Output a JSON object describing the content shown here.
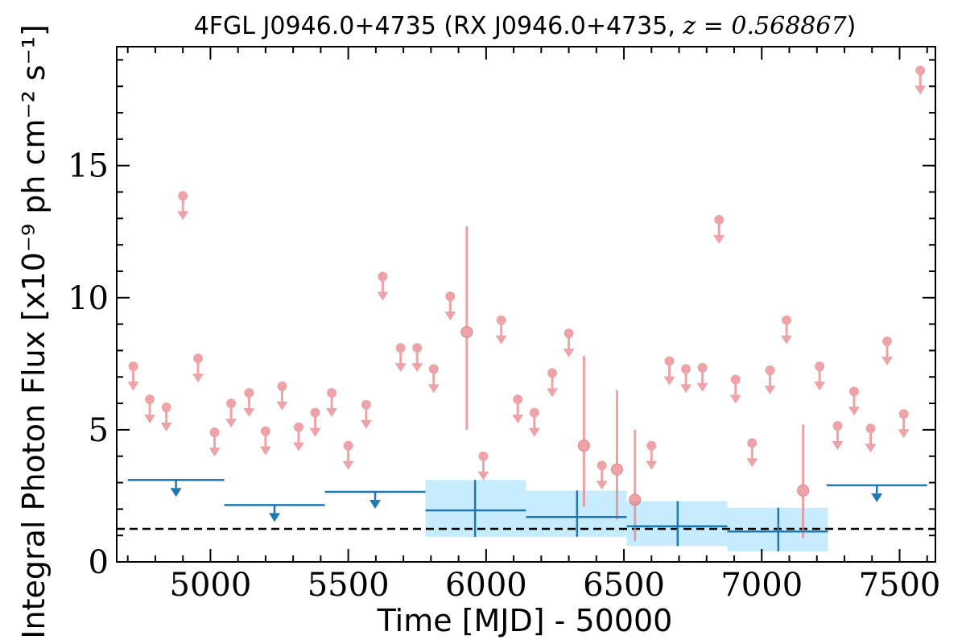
{
  "chart_data": {
    "type": "scatter",
    "title_parts": {
      "main": "4FGL J0946.0+4735 (RX J0946.0+4735, ",
      "math": "z = 0.568867",
      "end": ")"
    },
    "xlabel": "Time [MJD] - 50000",
    "ylabel": "Integral Photon Flux [x10⁻⁹ ph cm⁻² s⁻¹]",
    "xlim": [
      4660,
      7630
    ],
    "ylim": [
      0,
      19.5
    ],
    "x_ticks": [
      5000,
      5500,
      6000,
      6500,
      7000,
      7500
    ],
    "y_ticks": [
      0,
      5,
      10,
      15
    ],
    "x_tick_labels": [
      "5000",
      "5500",
      "6000",
      "6500",
      "7000",
      "7500"
    ],
    "y_tick_labels": [
      "0",
      "5",
      "10",
      "15"
    ],
    "colors": {
      "short_bins": "#e8858a",
      "long_bins": "#1f77b4",
      "band": "#c6ecfd",
      "reference_line": "#000000"
    },
    "reference_line": {
      "style": "dashed",
      "y": 1.25
    },
    "short_bins_upper_limits": [
      {
        "x": 4720,
        "y": 7.4
      },
      {
        "x": 4780,
        "y": 6.15
      },
      {
        "x": 4840,
        "y": 5.85
      },
      {
        "x": 4900,
        "y": 13.85
      },
      {
        "x": 4955,
        "y": 7.7
      },
      {
        "x": 5015,
        "y": 4.9
      },
      {
        "x": 5075,
        "y": 6.0
      },
      {
        "x": 5140,
        "y": 6.4
      },
      {
        "x": 5200,
        "y": 4.95
      },
      {
        "x": 5260,
        "y": 6.65
      },
      {
        "x": 5320,
        "y": 5.1
      },
      {
        "x": 5380,
        "y": 5.65
      },
      {
        "x": 5440,
        "y": 6.4
      },
      {
        "x": 5500,
        "y": 4.4
      },
      {
        "x": 5565,
        "y": 5.95
      },
      {
        "x": 5625,
        "y": 10.8
      },
      {
        "x": 5690,
        "y": 8.1
      },
      {
        "x": 5750,
        "y": 8.1
      },
      {
        "x": 5810,
        "y": 7.3
      },
      {
        "x": 5870,
        "y": 10.05
      },
      {
        "x": 5990,
        "y": 4.0
      },
      {
        "x": 6055,
        "y": 9.15
      },
      {
        "x": 6115,
        "y": 6.15
      },
      {
        "x": 6175,
        "y": 5.65
      },
      {
        "x": 6240,
        "y": 7.15
      },
      {
        "x": 6300,
        "y": 8.65
      },
      {
        "x": 6420,
        "y": 3.65
      },
      {
        "x": 6600,
        "y": 4.4
      },
      {
        "x": 6665,
        "y": 7.6
      },
      {
        "x": 6725,
        "y": 7.3
      },
      {
        "x": 6785,
        "y": 7.35
      },
      {
        "x": 6845,
        "y": 12.95
      },
      {
        "x": 6905,
        "y": 6.9
      },
      {
        "x": 6965,
        "y": 4.5
      },
      {
        "x": 7030,
        "y": 7.25
      },
      {
        "x": 7090,
        "y": 9.15
      },
      {
        "x": 7210,
        "y": 7.4
      },
      {
        "x": 7275,
        "y": 5.15
      },
      {
        "x": 7335,
        "y": 6.45
      },
      {
        "x": 7395,
        "y": 5.05
      },
      {
        "x": 7455,
        "y": 8.35
      },
      {
        "x": 7515,
        "y": 5.6
      },
      {
        "x": 7575,
        "y": 18.6
      }
    ],
    "short_bins_detections": [
      {
        "x": 5930,
        "y": 8.7,
        "yerr_low": 5.0,
        "yerr_high": 12.7
      },
      {
        "x": 6355,
        "y": 4.4,
        "yerr_low": 2.1,
        "yerr_high": 7.8
      },
      {
        "x": 6475,
        "y": 3.5,
        "yerr_low": 1.6,
        "yerr_high": 6.5
      },
      {
        "x": 6540,
        "y": 2.35,
        "yerr_low": 0.8,
        "yerr_high": 5.0
      },
      {
        "x": 7150,
        "y": 2.7,
        "yerr_low": 0.9,
        "yerr_high": 5.2
      }
    ],
    "long_bins_upper_limits": [
      {
        "x0": 4700,
        "x1": 5050,
        "y": 3.1
      },
      {
        "x0": 5050,
        "x1": 5415,
        "y": 2.15
      },
      {
        "x0": 5415,
        "x1": 5780,
        "y": 2.65
      },
      {
        "x0": 7235,
        "x1": 7600,
        "y": 2.9
      }
    ],
    "long_bins_detections": [
      {
        "x0": 5780,
        "x1": 6145,
        "x": 5960,
        "y": 1.95,
        "ylow": 0.95,
        "yhigh": 3.1
      },
      {
        "x0": 6145,
        "x1": 6510,
        "x": 6330,
        "y": 1.7,
        "ylow": 0.95,
        "yhigh": 2.7
      },
      {
        "x0": 6510,
        "x1": 6875,
        "x": 6695,
        "y": 1.35,
        "ylow": 0.6,
        "yhigh": 2.3
      },
      {
        "x0": 6875,
        "x1": 7240,
        "x": 7060,
        "y": 1.15,
        "ylow": 0.4,
        "yhigh": 2.05
      }
    ]
  }
}
